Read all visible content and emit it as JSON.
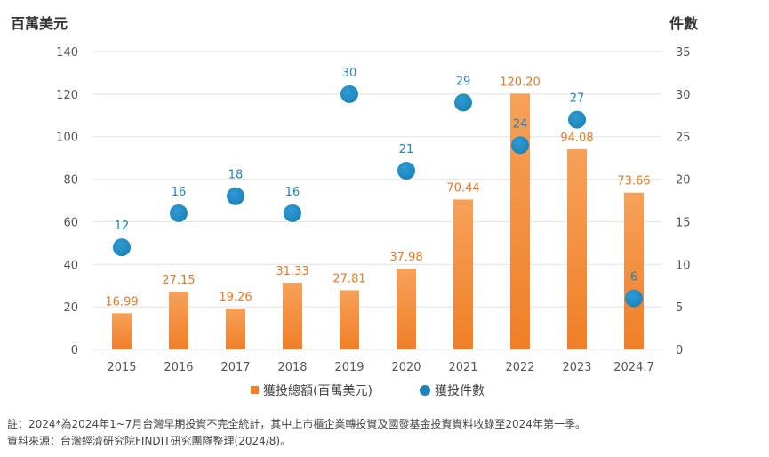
{
  "colors": {
    "bar": "#F07F27",
    "bar_light": "#F6A15A",
    "dot": "#1E84B8",
    "dot_light": "#2D9BD6",
    "grid": "#E2E2E2",
    "bar_label": "#E87722",
    "dot_label": "#1E84B8"
  },
  "chart_data": {
    "type": "bar",
    "title": "",
    "categories": [
      "2015",
      "2016",
      "2017",
      "2018",
      "2019",
      "2020",
      "2021",
      "2022",
      "2023",
      "2024.7"
    ],
    "y_left_label": "百萬美元",
    "y_right_label": "件數",
    "y_left_lim": [
      0,
      140
    ],
    "y_left_ticks": [
      "0",
      "20",
      "40",
      "60",
      "80",
      "100",
      "120",
      "140"
    ],
    "y_right_lim": [
      0,
      35
    ],
    "y_right_ticks": [
      "0",
      "5",
      "10",
      "15",
      "20",
      "25",
      "30",
      "35"
    ],
    "grid": true,
    "legend_position": "bottom",
    "series": [
      {
        "name": "獲投總額(百萬美元)",
        "type": "bar",
        "axis": "left",
        "values": [
          16.99,
          27.15,
          19.26,
          31.33,
          27.81,
          37.98,
          70.44,
          120.2,
          94.08,
          73.66
        ],
        "labels": [
          "16.99",
          "27.15",
          "19.26",
          "31.33",
          "27.81",
          "37.98",
          "70.44",
          "120.20",
          "94.08",
          "73.66"
        ]
      },
      {
        "name": "獲投件數",
        "type": "scatter",
        "axis": "right",
        "values": [
          12,
          16,
          18,
          16,
          30,
          21,
          29,
          24,
          27,
          6
        ],
        "labels": [
          "12",
          "16",
          "18",
          "16",
          "30",
          "21",
          "29",
          "24",
          "27",
          "6"
        ]
      }
    ]
  },
  "notes": {
    "line1": "註：2024*為2024年1~7月台灣早期投資不完全統計，其中上市櫃企業轉投資及國發基金投資資料收錄至2024年第一季。",
    "line2": "資料來源：台灣經濟研究院FINDIT研究團隊整理(2024/8)。"
  }
}
